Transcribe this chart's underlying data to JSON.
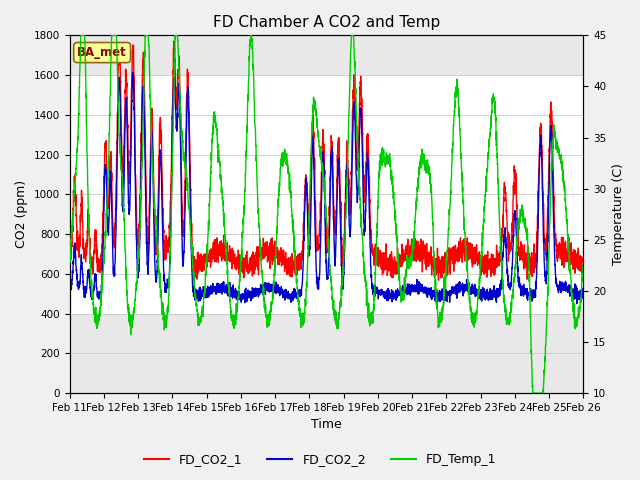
{
  "title": "FD Chamber A CO2 and Temp",
  "xlabel": "Time",
  "ylabel_left": "CO2 (ppm)",
  "ylabel_right": "Temperature (C)",
  "ylim_left": [
    0,
    1800
  ],
  "ylim_right": [
    10,
    45
  ],
  "xtick_labels": [
    "Feb 11",
    "Feb 12",
    "Feb 13",
    "Feb 14",
    "Feb 15",
    "Feb 16",
    "Feb 17",
    "Feb 18",
    "Feb 19",
    "Feb 20",
    "Feb 21",
    "Feb 22",
    "Feb 23",
    "Feb 24",
    "Feb 25",
    "Feb 26"
  ],
  "legend_labels": [
    "FD_CO2_1",
    "FD_CO2_2",
    "FD_Temp_1"
  ],
  "line_colors": [
    "#ff0000",
    "#0000cc",
    "#00cc00"
  ],
  "watermark_text": "BA_met",
  "watermark_bg": "#ffff99",
  "watermark_border": "#8B6914",
  "bg_outer": "#f0f0f0",
  "bg_plot": "#e8e8e8",
  "band_white_co2": [
    400,
    1600
  ],
  "yticks_left": [
    0,
    200,
    400,
    600,
    800,
    1000,
    1200,
    1400,
    1600,
    1800
  ],
  "yticks_right": [
    10,
    15,
    20,
    25,
    30,
    35,
    40,
    45
  ],
  "title_fontsize": 11,
  "axis_label_fontsize": 9,
  "tick_fontsize": 7.5,
  "line_width": 1.0,
  "legend_fontsize": 9
}
